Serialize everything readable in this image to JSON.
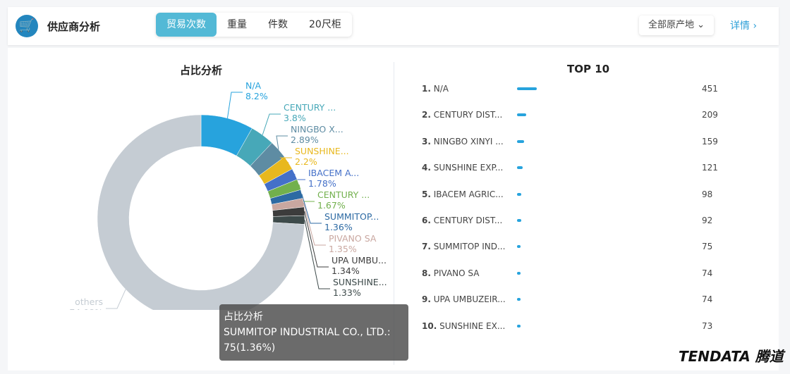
{
  "header": {
    "title": "供应商分析",
    "tabs": [
      "贸易次数",
      "重量",
      "件数",
      "20尺柜"
    ],
    "active_tab": 0,
    "origin_select": "全部原产地",
    "details_link": "详情 ›",
    "logo_icon": "shopping-cart-icon"
  },
  "pie_title": "占比分析",
  "top_title": "TOP 10",
  "brand": "TENDATA 腾道",
  "tooltip": {
    "title": "占比分析",
    "line1": "SUMMITOP INDUSTRIAL CO., LTD.:",
    "line2": "75(1.36%)"
  },
  "chart_data": [
    {
      "type": "pie",
      "title": "占比分析",
      "donut": true,
      "slices": [
        {
          "label": "N/A",
          "value": 8.2,
          "color": "#27a3dd"
        },
        {
          "label": "CENTURY ...",
          "value": 3.8,
          "color": "#47a8b8"
        },
        {
          "label": "NINGBO X...",
          "value": 2.89,
          "color": "#5e8ca3"
        },
        {
          "label": "SUNSHINE...",
          "value": 2.2,
          "color": "#e8b81e"
        },
        {
          "label": "IBACEM A...",
          "value": 1.78,
          "color": "#4470c8"
        },
        {
          "label": "CENTURY ...",
          "value": 1.67,
          "color": "#72b04d"
        },
        {
          "label": "SUMMITOP...",
          "value": 1.36,
          "color": "#2d6aa3"
        },
        {
          "label": "PIVANO SA",
          "value": 1.35,
          "color": "#c9a7a0"
        },
        {
          "label": "UPA UMBU...",
          "value": 1.34,
          "color": "#3c3c3c"
        },
        {
          "label": "SUNSHINE...",
          "value": 1.33,
          "color": "#3d4a4a"
        },
        {
          "label": "others",
          "value": 74.08,
          "color": "#c5ccd3"
        }
      ]
    },
    {
      "type": "bar",
      "title": "TOP 10",
      "categories": [
        "1. N/A",
        "2. CENTURY DIST...",
        "3. NINGBO XINYI ...",
        "4. SUNSHINE EXP...",
        "5. IBACEM AGRIC...",
        "6. CENTURY DIST...",
        "7. SUMMITOP IND...",
        "8. PIVANO SA",
        "9. UPA UMBUZEIR...",
        "10. SUNSHINE EX..."
      ],
      "values": [
        451,
        209,
        159,
        121,
        98,
        92,
        75,
        74,
        74,
        73
      ]
    }
  ]
}
